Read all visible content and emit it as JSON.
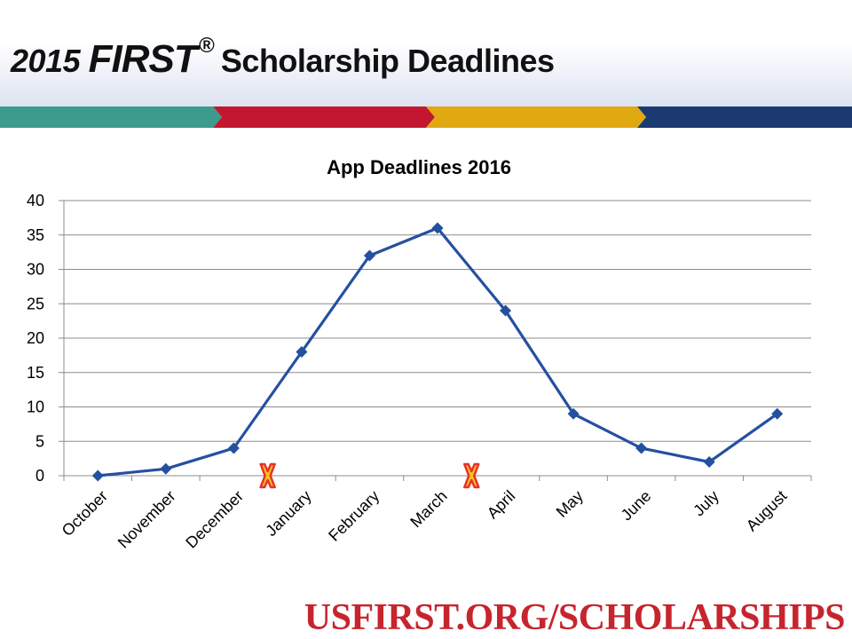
{
  "slide": {
    "title_year": "2015",
    "title_brand": "FIRST",
    "title_reg": "®",
    "title_rest": "Scholarship Deadlines",
    "band_colors": [
      "#3b9b8c",
      "#c3172f",
      "#e0a912",
      "#1b3a72"
    ],
    "footer_url": "USFIRST.ORG/SCHOLARSHIPS"
  },
  "chart_data": {
    "type": "line",
    "title": "App Deadlines 2016",
    "categories": [
      "October",
      "November",
      "December",
      "January",
      "February",
      "March",
      "April",
      "May",
      "June",
      "July",
      "August"
    ],
    "series": [
      {
        "values": [
          0,
          1,
          4,
          18,
          32,
          36,
          24,
          9,
          4,
          2,
          9
        ],
        "color": "#2450a0"
      }
    ],
    "ylim": [
      0,
      40
    ],
    "yticks": [
      0,
      5,
      10,
      15,
      20,
      25,
      30,
      35,
      40
    ],
    "grid": true,
    "legend": "none",
    "annotations": [
      {
        "type": "x-marker",
        "category": "January",
        "value": 0,
        "color": "#e8322a",
        "fill": "#f7c51e"
      },
      {
        "type": "x-marker",
        "category": "April",
        "value": 0,
        "color": "#e8322a",
        "fill": "#f7c51e"
      }
    ]
  }
}
